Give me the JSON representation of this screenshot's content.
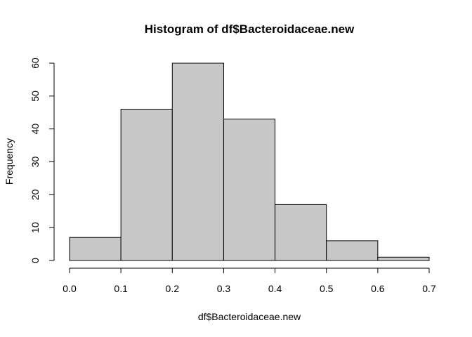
{
  "chart_data": {
    "type": "bar",
    "title": "Histogram of df$Bacteroidaceae.new",
    "xlabel": "df$Bacteroidaceae.new",
    "ylabel": "Frequency",
    "bins": [
      {
        "start": 0.0,
        "end": 0.1,
        "count": 7
      },
      {
        "start": 0.1,
        "end": 0.2,
        "count": 46
      },
      {
        "start": 0.2,
        "end": 0.3,
        "count": 60
      },
      {
        "start": 0.3,
        "end": 0.4,
        "count": 43
      },
      {
        "start": 0.4,
        "end": 0.5,
        "count": 17
      },
      {
        "start": 0.5,
        "end": 0.6,
        "count": 6
      },
      {
        "start": 0.6,
        "end": 0.7,
        "count": 1
      }
    ],
    "xlim": [
      0.0,
      0.7
    ],
    "ylim": [
      0,
      60
    ],
    "x_ticks": [
      "0.0",
      "0.1",
      "0.2",
      "0.3",
      "0.4",
      "0.5",
      "0.6",
      "0.7"
    ],
    "y_ticks": [
      "0",
      "10",
      "20",
      "30",
      "40",
      "50",
      "60"
    ],
    "grid": false,
    "bar_color": "#c8c8c8"
  }
}
